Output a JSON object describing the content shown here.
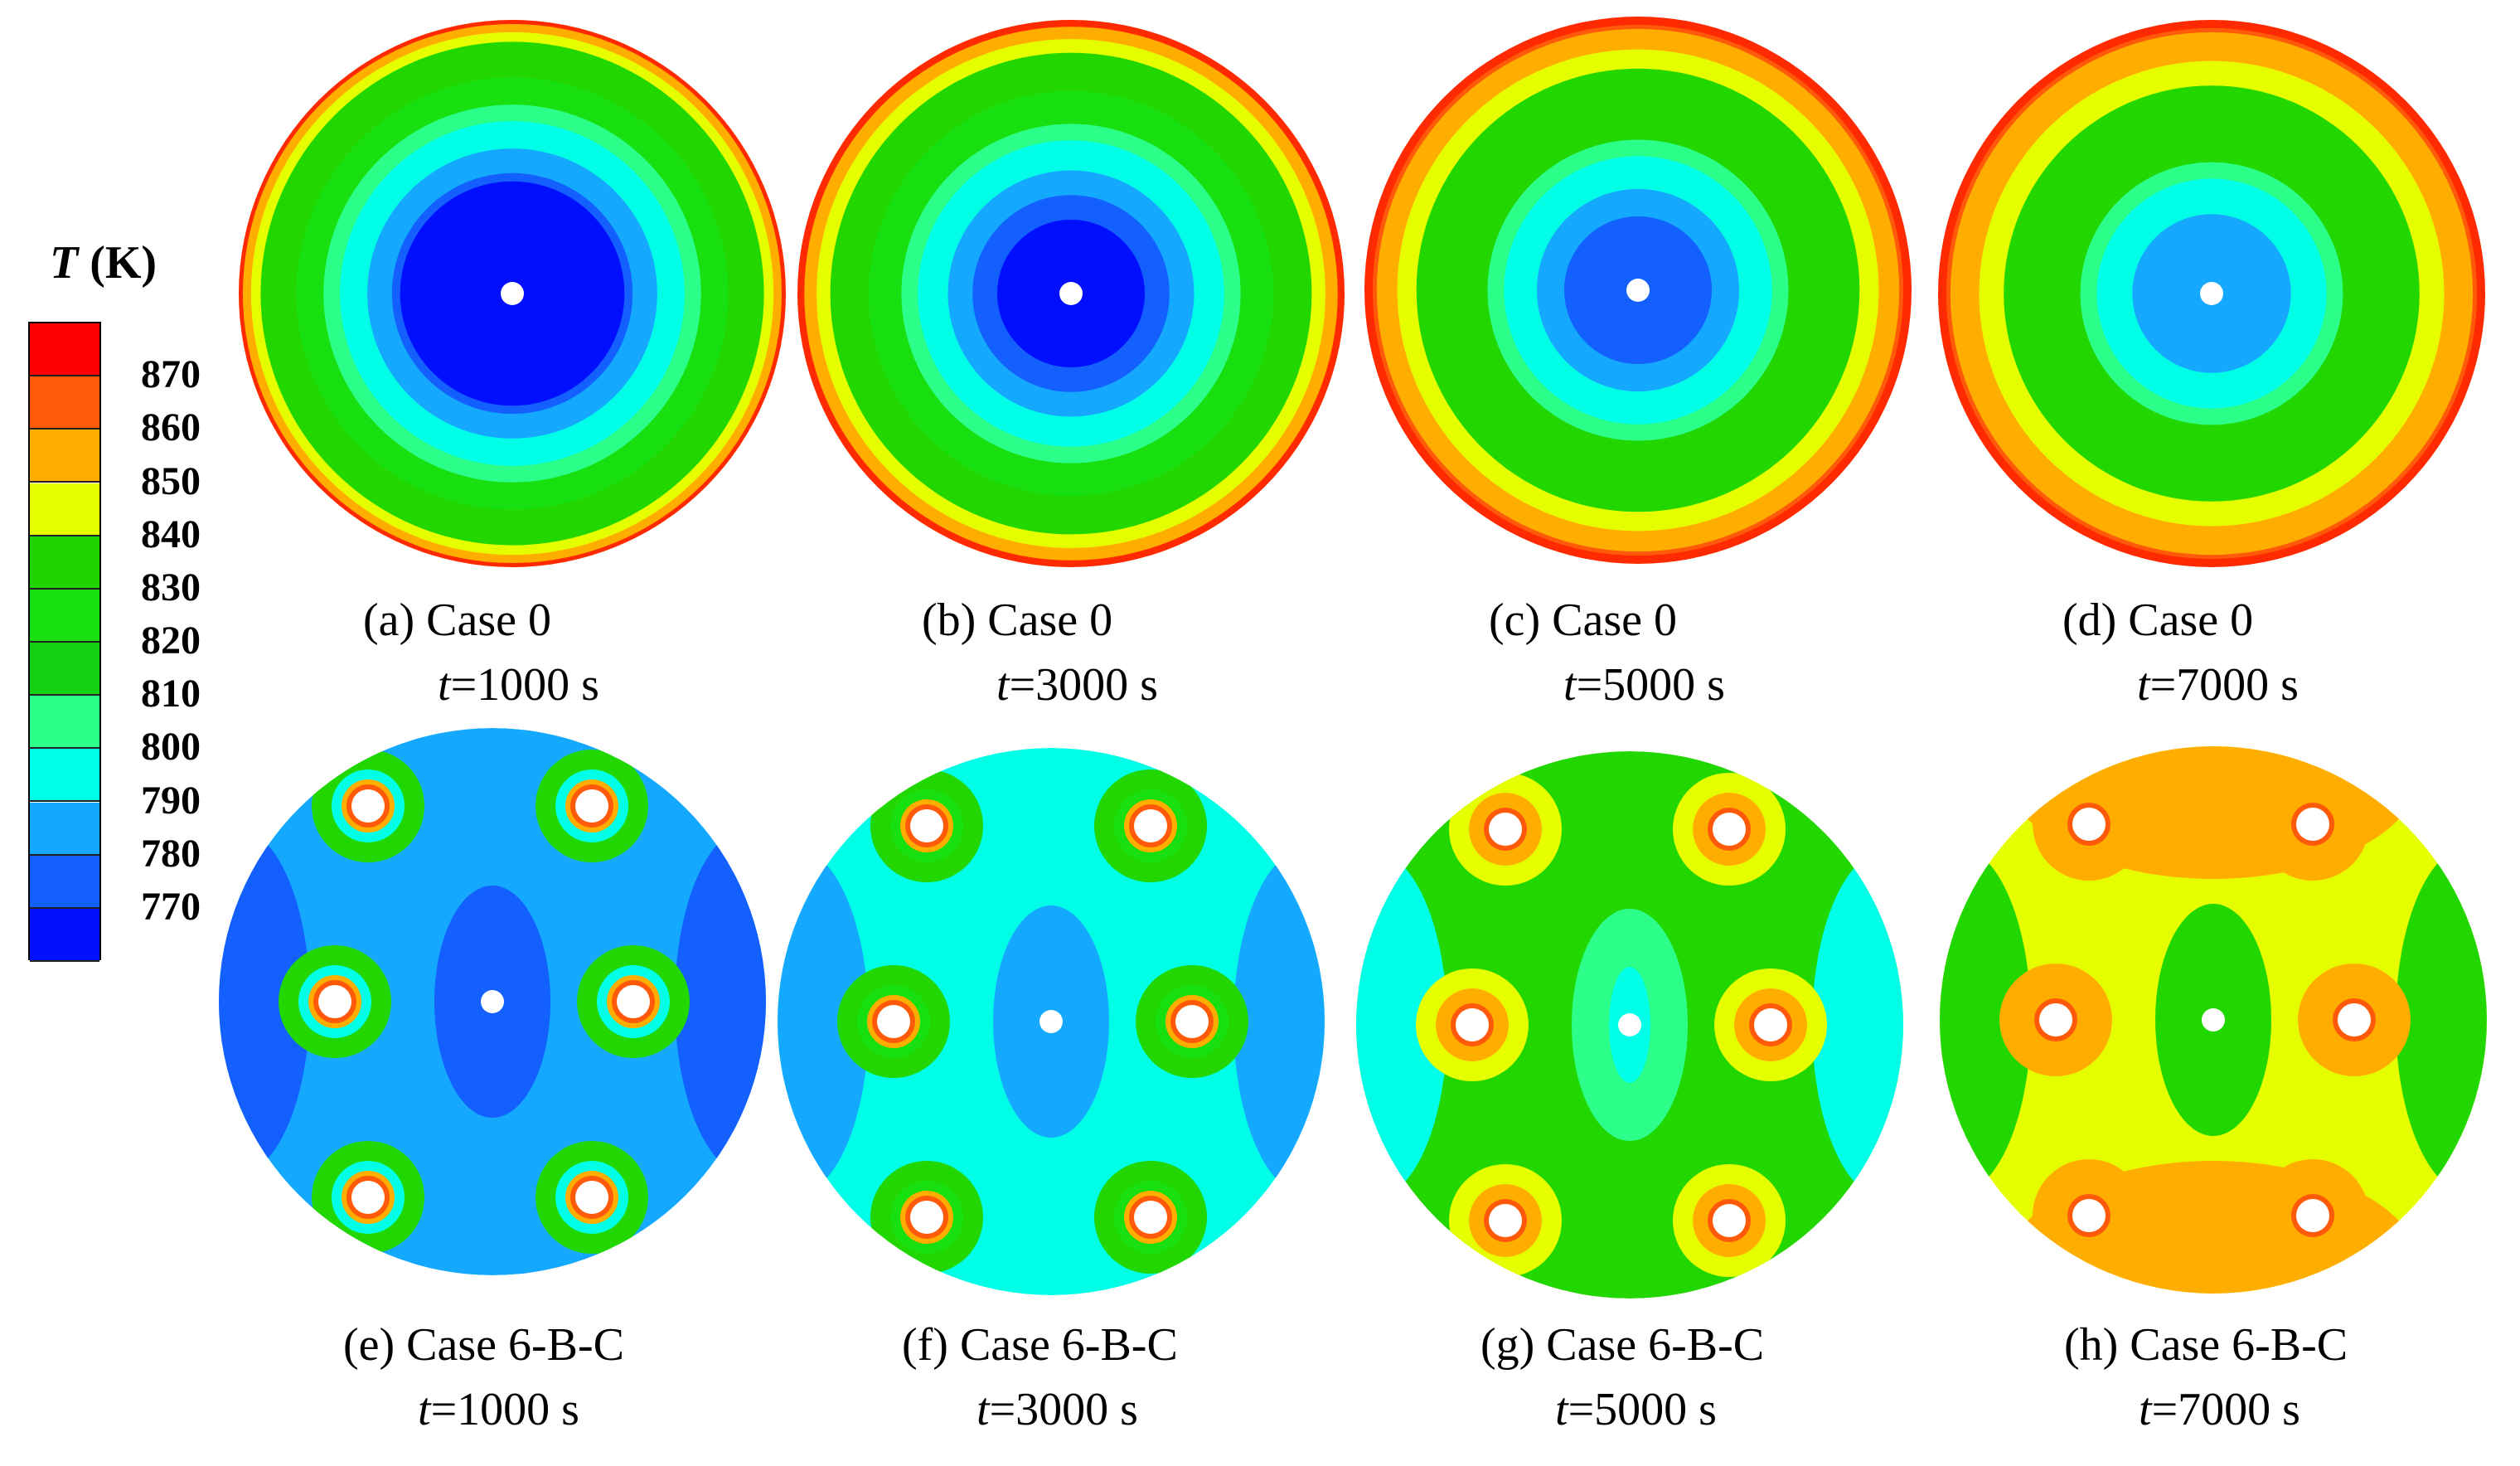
{
  "legend": {
    "symbol": "T",
    "unit": "(K)",
    "ticks": [
      "870",
      "860",
      "850",
      "840",
      "830",
      "820",
      "810",
      "800",
      "790",
      "780",
      "770"
    ],
    "colors": [
      "#ff0000",
      "#ff5a0a",
      "#ffae00",
      "#e6ff00",
      "#20d400",
      "#18e010",
      "#14cf14",
      "#2bff8a",
      "#00ffe6",
      "#14a9ff",
      "#1360ff",
      "#0010ff"
    ]
  },
  "panels": [
    {
      "label": "(a) Case 0",
      "t_var": "t",
      "t_val": "=1000 s",
      "type": "radial",
      "case": "0",
      "time_s": 1000
    },
    {
      "label": "(b) Case 0",
      "t_var": "t",
      "t_val": "=3000 s",
      "type": "radial",
      "case": "0",
      "time_s": 3000
    },
    {
      "label": "(c) Case 0",
      "t_var": "t",
      "t_val": "=5000 s",
      "type": "radial",
      "case": "0",
      "time_s": 5000
    },
    {
      "label": "(d) Case 0",
      "t_var": "t",
      "t_val": "=7000 s",
      "type": "radial",
      "case": "0",
      "time_s": 7000
    },
    {
      "label": "(e) Case 6-B-C",
      "t_var": "t",
      "t_val": "=1000 s",
      "type": "pipes",
      "case": "6-B-C",
      "time_s": 1000
    },
    {
      "label": "(f) Case 6-B-C",
      "t_var": "t",
      "t_val": "=3000 s",
      "type": "pipes",
      "case": "6-B-C",
      "time_s": 3000
    },
    {
      "label": "(g) Case 6-B-C",
      "t_var": "t",
      "t_val": "=5000 s",
      "type": "pipes",
      "case": "6-B-C",
      "time_s": 5000
    },
    {
      "label": "(h) Case 6-B-C",
      "t_var": "t",
      "t_val": "=7000 s",
      "type": "pipes",
      "case": "6-B-C",
      "time_s": 7000
    }
  ]
}
